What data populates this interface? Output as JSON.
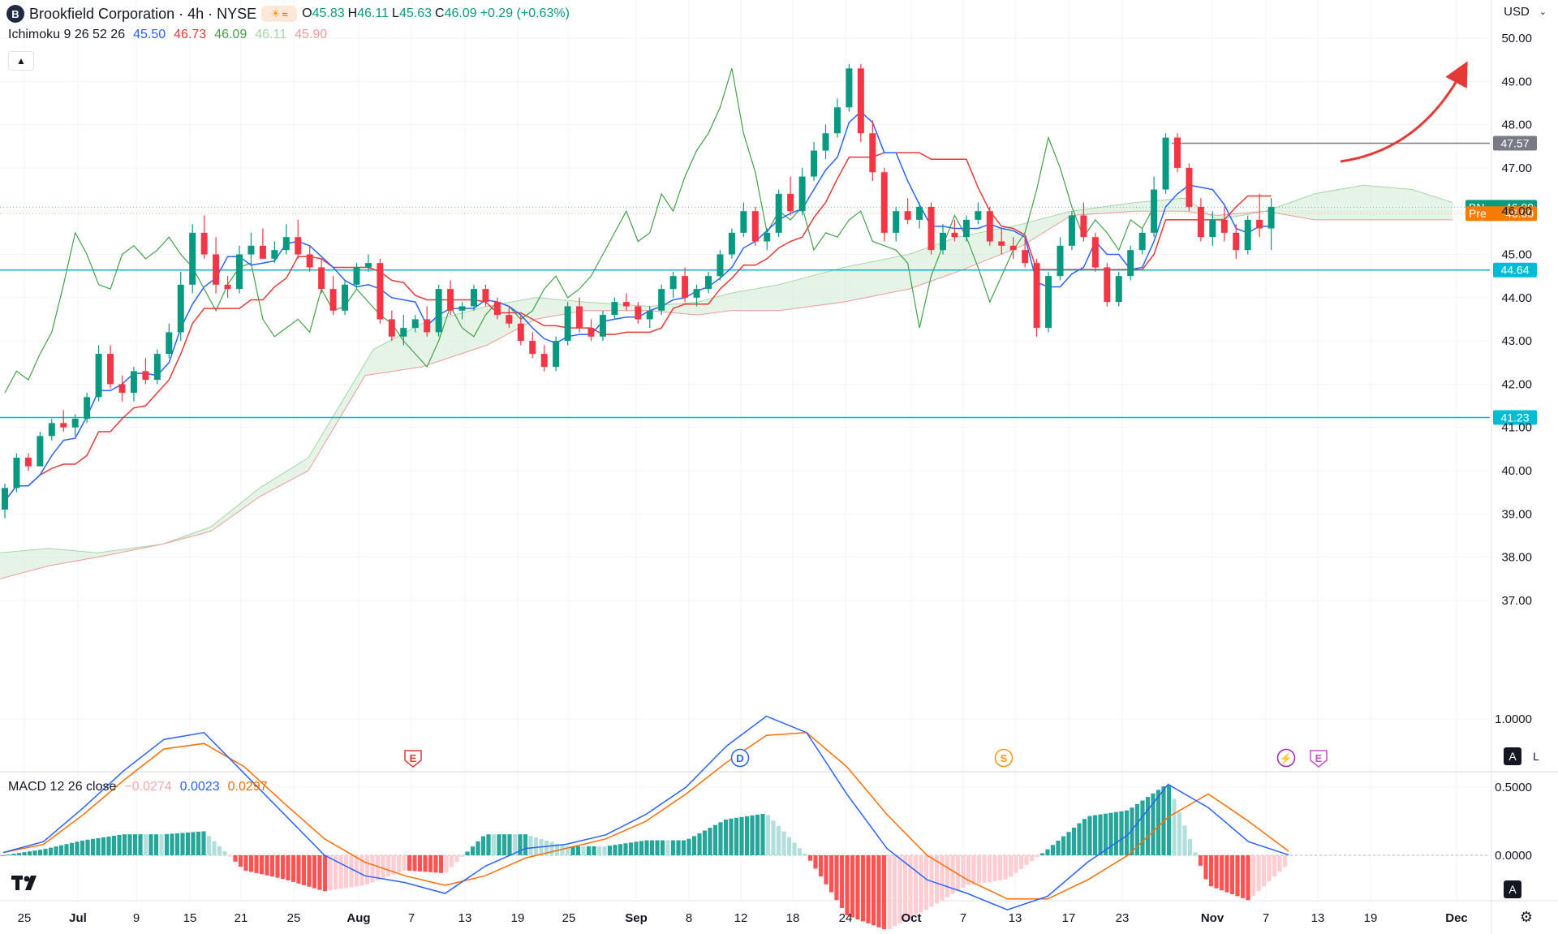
{
  "header": {
    "logo_letter": "B",
    "symbol_title": "Brookfield Corporation · 4h · NYSE",
    "ohlc": [
      {
        "k": "O",
        "v": "45.83"
      },
      {
        "k": "H",
        "v": "46.11"
      },
      {
        "k": "L",
        "v": "45.63"
      },
      {
        "k": "C",
        "v": "46.09"
      }
    ],
    "change": "+0.29 (+0.63%)",
    "up_color": "#089981"
  },
  "indicator": {
    "name": "Ichimoku 9 26 52 26",
    "values": [
      {
        "v": "45.50",
        "color": "#2962ff"
      },
      {
        "v": "46.73",
        "color": "#e53935"
      },
      {
        "v": "46.09",
        "color": "#43a047"
      },
      {
        "v": "46.11",
        "color": "#a5d6a7"
      },
      {
        "v": "45.90",
        "color": "#ef9a9a"
      }
    ]
  },
  "macd": {
    "name": "MACD 12 26 close",
    "values": [
      {
        "v": "−0.0274",
        "color": "#f7a8a8"
      },
      {
        "v": "0.0023",
        "color": "#2962ff"
      },
      {
        "v": "0.0297",
        "color": "#ff6d00"
      }
    ]
  },
  "currency": "USD",
  "price_scale": {
    "labels": [
      "50.00",
      "49.00",
      "48.00",
      "47.00",
      "46.00",
      "45.00",
      "44.00",
      "43.00",
      "42.00",
      "41.00",
      "40.00",
      "39.00",
      "38.00",
      "37.00"
    ]
  },
  "macd_scale": {
    "labels": [
      "1.0000",
      "0.5000",
      "0.0000"
    ]
  },
  "time_axis": {
    "labels": [
      "25",
      "Jul",
      "9",
      "15",
      "21",
      "25",
      "Aug",
      "7",
      "13",
      "19",
      "25",
      "Sep",
      "8",
      "12",
      "18",
      "24",
      "Oct",
      "7",
      "13",
      "17",
      "23",
      "Nov",
      "7",
      "13",
      "19",
      "Dec"
    ]
  },
  "badges": [
    {
      "text": "47.57",
      "bg": "#787b86"
    },
    {
      "text": "44.64",
      "bg": "#00bcd4"
    },
    {
      "text": "41.23",
      "bg": "#00bcd4"
    }
  ],
  "price_tags": [
    {
      "tag": "BN",
      "value": "46.09",
      "bg": "#089981"
    },
    {
      "tag": "Pre",
      "value": "46.00",
      "bg": "#f57c00"
    }
  ],
  "events": [
    {
      "letter": "E",
      "color": "#e53935"
    },
    {
      "letter": "D",
      "color": "#2962ff"
    },
    {
      "letter": "S",
      "color": "#ff9800"
    },
    {
      "letter": "⚡",
      "color": "#9c27b0"
    },
    {
      "letter": "E",
      "color": "#c154c1"
    }
  ],
  "scale_buttons": {
    "auto": "A",
    "log": "L"
  },
  "chart_data": [
    {
      "type": "candlestick",
      "title": "Brookfield Corporation · 4h · NYSE",
      "ylim": [
        36.6,
        50.4
      ],
      "x_range": [
        "Jun 25",
        "Dec"
      ],
      "horizontal_levels": [
        47.57,
        44.64,
        41.23
      ],
      "candles_ohlc": [
        [
          39.1,
          39.7,
          38.9,
          39.6
        ],
        [
          39.6,
          40.4,
          39.5,
          40.3
        ],
        [
          40.3,
          40.4,
          40.0,
          40.1
        ],
        [
          40.1,
          40.9,
          40.1,
          40.8
        ],
        [
          40.8,
          41.2,
          40.7,
          41.1
        ],
        [
          41.1,
          41.4,
          40.9,
          41.0
        ],
        [
          41.0,
          41.3,
          40.8,
          41.2
        ],
        [
          41.2,
          41.8,
          41.1,
          41.7
        ],
        [
          41.7,
          42.9,
          41.6,
          42.7
        ],
        [
          42.7,
          42.9,
          41.9,
          42.0
        ],
        [
          42.0,
          42.2,
          41.6,
          41.8
        ],
        [
          41.8,
          42.4,
          41.6,
          42.3
        ],
        [
          42.3,
          42.6,
          42.0,
          42.1
        ],
        [
          42.1,
          42.8,
          42.0,
          42.7
        ],
        [
          42.7,
          43.4,
          42.6,
          43.2
        ],
        [
          43.2,
          44.6,
          43.0,
          44.3
        ],
        [
          44.3,
          45.7,
          44.1,
          45.5
        ],
        [
          45.5,
          45.9,
          44.9,
          45.0
        ],
        [
          45.0,
          45.4,
          44.1,
          44.3
        ],
        [
          44.3,
          44.5,
          44.0,
          44.2
        ],
        [
          44.2,
          45.2,
          44.1,
          45.0
        ],
        [
          45.0,
          45.5,
          44.8,
          45.2
        ],
        [
          45.2,
          45.6,
          44.9,
          44.9
        ],
        [
          44.9,
          45.3,
          44.8,
          45.1
        ],
        [
          45.1,
          45.7,
          45.0,
          45.4
        ],
        [
          45.4,
          45.8,
          44.9,
          45.0
        ],
        [
          45.0,
          45.2,
          44.6,
          44.7
        ],
        [
          44.7,
          44.9,
          44.1,
          44.2
        ],
        [
          44.2,
          44.5,
          43.6,
          43.7
        ],
        [
          43.7,
          44.4,
          43.6,
          44.3
        ],
        [
          44.3,
          44.8,
          44.2,
          44.7
        ],
        [
          44.7,
          45.0,
          44.6,
          44.8
        ],
        [
          44.8,
          44.9,
          43.4,
          43.5
        ],
        [
          43.5,
          43.7,
          43.0,
          43.1
        ],
        [
          43.1,
          43.6,
          42.9,
          43.3
        ],
        [
          43.3,
          43.6,
          43.2,
          43.5
        ],
        [
          43.5,
          43.8,
          43.1,
          43.2
        ],
        [
          43.2,
          44.3,
          43.1,
          44.2
        ],
        [
          44.2,
          44.4,
          43.6,
          43.7
        ],
        [
          43.7,
          43.9,
          43.5,
          43.8
        ],
        [
          43.8,
          44.3,
          43.7,
          44.2
        ],
        [
          44.2,
          44.3,
          43.8,
          43.9
        ],
        [
          43.9,
          44.0,
          43.5,
          43.6
        ],
        [
          43.6,
          43.8,
          43.3,
          43.4
        ],
        [
          43.4,
          43.6,
          42.9,
          43.0
        ],
        [
          43.0,
          43.2,
          42.6,
          42.7
        ],
        [
          42.7,
          42.9,
          42.3,
          42.4
        ],
        [
          42.4,
          43.1,
          42.3,
          43.0
        ],
        [
          43.0,
          43.9,
          42.9,
          43.8
        ],
        [
          43.8,
          44.0,
          43.2,
          43.3
        ],
        [
          43.3,
          43.5,
          43.0,
          43.1
        ],
        [
          43.1,
          43.7,
          43.0,
          43.6
        ],
        [
          43.6,
          44.0,
          43.5,
          43.9
        ],
        [
          43.9,
          44.1,
          43.7,
          43.8
        ],
        [
          43.8,
          43.9,
          43.4,
          43.5
        ],
        [
          43.5,
          43.8,
          43.3,
          43.7
        ],
        [
          43.7,
          44.3,
          43.6,
          44.2
        ],
        [
          44.2,
          44.6,
          44.0,
          44.5
        ],
        [
          44.5,
          44.7,
          43.9,
          44.0
        ],
        [
          44.0,
          44.3,
          43.8,
          44.2
        ],
        [
          44.2,
          44.6,
          44.1,
          44.5
        ],
        [
          44.5,
          45.1,
          44.4,
          45.0
        ],
        [
          45.0,
          45.6,
          44.9,
          45.5
        ],
        [
          45.5,
          46.2,
          45.4,
          46.0
        ],
        [
          46.0,
          46.1,
          45.2,
          45.3
        ],
        [
          45.3,
          45.6,
          45.1,
          45.5
        ],
        [
          45.5,
          46.5,
          45.4,
          46.4
        ],
        [
          46.4,
          46.8,
          45.9,
          46.0
        ],
        [
          46.0,
          47.0,
          45.9,
          46.8
        ],
        [
          46.8,
          47.6,
          46.7,
          47.4
        ],
        [
          47.4,
          48.0,
          47.2,
          47.8
        ],
        [
          47.8,
          48.6,
          47.7,
          48.4
        ],
        [
          48.4,
          49.4,
          48.3,
          49.3
        ],
        [
          49.3,
          49.4,
          47.6,
          47.8
        ],
        [
          47.8,
          48.1,
          46.7,
          46.9
        ],
        [
          46.9,
          47.0,
          45.3,
          45.5
        ],
        [
          45.5,
          46.1,
          45.3,
          46.0
        ],
        [
          46.0,
          46.3,
          45.7,
          45.8
        ],
        [
          45.8,
          46.2,
          45.6,
          46.1
        ],
        [
          46.1,
          46.2,
          45.0,
          45.1
        ],
        [
          45.1,
          45.7,
          45.0,
          45.5
        ],
        [
          45.5,
          45.8,
          45.3,
          45.4
        ],
        [
          45.4,
          45.9,
          45.3,
          45.8
        ],
        [
          45.8,
          46.2,
          45.7,
          46.0
        ],
        [
          46.0,
          46.1,
          45.2,
          45.3
        ],
        [
          45.3,
          45.6,
          45.0,
          45.2
        ],
        [
          45.2,
          45.4,
          44.9,
          45.1
        ],
        [
          45.1,
          45.4,
          44.7,
          44.8
        ],
        [
          44.8,
          44.9,
          43.1,
          43.3
        ],
        [
          43.3,
          44.6,
          43.2,
          44.5
        ],
        [
          44.5,
          45.4,
          44.4,
          45.2
        ],
        [
          45.2,
          46.0,
          45.1,
          45.9
        ],
        [
          45.9,
          46.2,
          45.3,
          45.4
        ],
        [
          45.4,
          45.5,
          44.6,
          44.7
        ],
        [
          44.7,
          44.8,
          43.8,
          43.9
        ],
        [
          43.9,
          44.6,
          43.8,
          44.5
        ],
        [
          44.5,
          45.2,
          44.4,
          45.1
        ],
        [
          45.1,
          45.6,
          45.0,
          45.5
        ],
        [
          45.5,
          46.8,
          45.4,
          46.5
        ],
        [
          46.5,
          47.8,
          46.4,
          47.7
        ],
        [
          47.7,
          47.8,
          46.9,
          47.0
        ],
        [
          47.0,
          47.1,
          46.0,
          46.1
        ],
        [
          46.1,
          46.3,
          45.3,
          45.4
        ],
        [
          45.4,
          46.0,
          45.2,
          45.8
        ],
        [
          45.8,
          46.1,
          45.3,
          45.5
        ],
        [
          45.5,
          45.7,
          44.9,
          45.1
        ],
        [
          45.1,
          45.9,
          45.0,
          45.8
        ],
        [
          45.8,
          46.4,
          45.4,
          45.6
        ],
        [
          45.6,
          46.3,
          45.1,
          46.1
        ]
      ],
      "macd_line_samples": [
        0.02,
        0.1,
        0.35,
        0.62,
        0.85,
        0.9,
        0.6,
        0.3,
        0.0,
        -0.15,
        -0.2,
        -0.28,
        -0.08,
        0.05,
        0.08,
        0.15,
        0.3,
        0.5,
        0.8,
        1.02,
        0.9,
        0.45,
        0.05,
        -0.18,
        -0.28,
        -0.4,
        -0.3,
        -0.05,
        0.15,
        0.52,
        0.35,
        0.1,
        0.0023
      ],
      "signal_line_samples": [
        0.02,
        0.08,
        0.3,
        0.55,
        0.78,
        0.82,
        0.65,
        0.38,
        0.12,
        -0.05,
        -0.15,
        -0.22,
        -0.15,
        -0.02,
        0.05,
        0.12,
        0.25,
        0.45,
        0.68,
        0.88,
        0.9,
        0.65,
        0.3,
        0.0,
        -0.18,
        -0.32,
        -0.32,
        -0.18,
        0.0,
        0.28,
        0.45,
        0.25,
        0.0297
      ]
    }
  ]
}
